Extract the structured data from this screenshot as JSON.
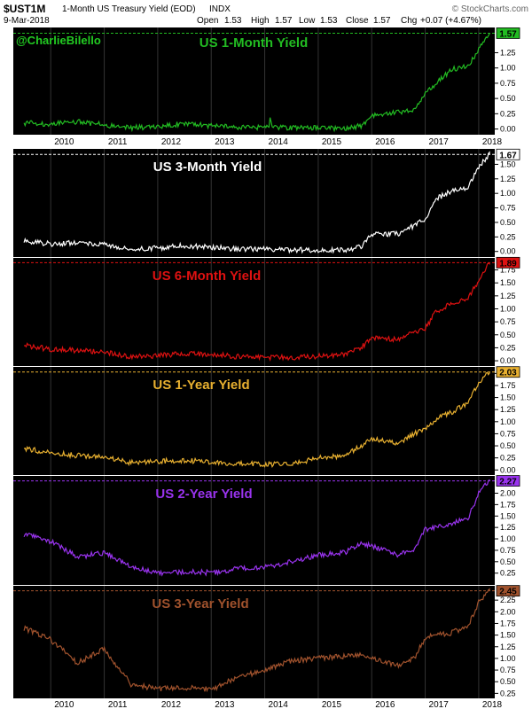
{
  "header": {
    "symbol": "$UST1M",
    "description": "1-Month US Treasury Yield (EOD)",
    "exchange": "INDX",
    "date": "9-Mar-2018",
    "source": "© StockCharts.com",
    "open_label": "Open",
    "open": "1.53",
    "high_label": "High",
    "high": "1.57",
    "low_label": "Low",
    "low": "1.53",
    "close_label": "Close",
    "close": "1.57",
    "chg_label": "Chg",
    "chg": "+0.07 (+4.67%)"
  },
  "watermark": "@CharlieBilello",
  "x_ticks": [
    "2010",
    "2011",
    "2012",
    "2013",
    "2014",
    "2015",
    "2016",
    "2017",
    "2018"
  ],
  "chart_data": [
    {
      "type": "line",
      "title": "US 1-Month Yield",
      "color": "#22bb22",
      "last_value": "1.57",
      "ylim": [
        -0.05,
        1.62
      ],
      "y_ticks": [
        "0.00",
        "0.25",
        "0.50",
        "0.75",
        "1.00",
        "1.25"
      ],
      "x": [
        2009.5,
        2010,
        2010.5,
        2011,
        2011.5,
        2012,
        2012.5,
        2013,
        2013.5,
        2014,
        2014.5,
        2015,
        2015.5,
        2015.8,
        2016,
        2016.5,
        2016.8,
        2017,
        2017.2,
        2017.5,
        2017.8,
        2018,
        2018.2
      ],
      "values": [
        0.1,
        0.08,
        0.12,
        0.07,
        0.02,
        0.04,
        0.09,
        0.05,
        0.03,
        0.03,
        0.02,
        0.02,
        0.01,
        0.05,
        0.22,
        0.27,
        0.33,
        0.58,
        0.75,
        0.98,
        1.02,
        1.3,
        1.57
      ]
    },
    {
      "type": "line",
      "title": "US 3-Month Yield",
      "color": "#ffffff",
      "last_value": "1.67",
      "ylim": [
        -0.05,
        1.72
      ],
      "y_ticks": [
        "0.00",
        "0.25",
        "0.50",
        "0.75",
        "1.00",
        "1.25",
        "1.50"
      ],
      "x": [
        2009.5,
        2010,
        2010.5,
        2011,
        2011.5,
        2012,
        2012.5,
        2013,
        2013.5,
        2014,
        2014.5,
        2015,
        2015.5,
        2015.8,
        2016,
        2016.5,
        2016.8,
        2017,
        2017.2,
        2017.5,
        2017.8,
        2018,
        2018.2
      ],
      "values": [
        0.18,
        0.13,
        0.15,
        0.12,
        0.03,
        0.06,
        0.1,
        0.07,
        0.04,
        0.04,
        0.03,
        0.02,
        0.02,
        0.08,
        0.3,
        0.3,
        0.45,
        0.55,
        0.9,
        1.05,
        1.1,
        1.45,
        1.67
      ]
    },
    {
      "type": "line",
      "title": "US 6-Month Yield",
      "color": "#dd1111",
      "last_value": "1.89",
      "ylim": [
        -0.05,
        1.93
      ],
      "y_ticks": [
        "0.00",
        "0.25",
        "0.50",
        "0.75",
        "1.00",
        "1.25",
        "1.50",
        "1.75"
      ],
      "x": [
        2009.5,
        2010,
        2010.5,
        2011,
        2011.5,
        2012,
        2012.5,
        2013,
        2013.5,
        2014,
        2014.5,
        2015,
        2015.5,
        2015.8,
        2016,
        2016.5,
        2016.8,
        2017,
        2017.2,
        2017.5,
        2017.8,
        2018,
        2018.2
      ],
      "values": [
        0.3,
        0.22,
        0.2,
        0.17,
        0.07,
        0.1,
        0.14,
        0.12,
        0.08,
        0.07,
        0.06,
        0.09,
        0.12,
        0.25,
        0.45,
        0.4,
        0.55,
        0.62,
        0.95,
        1.1,
        1.2,
        1.55,
        1.89
      ]
    },
    {
      "type": "line",
      "title": "US 1-Year Yield",
      "color": "#e8b030",
      "last_value": "2.03",
      "ylim": [
        -0.05,
        2.08
      ],
      "y_ticks": [
        "0.00",
        "0.25",
        "0.50",
        "0.75",
        "1.00",
        "1.25",
        "1.50",
        "1.75",
        "2.00"
      ],
      "x": [
        2009.5,
        2010,
        2010.5,
        2011,
        2011.5,
        2012,
        2012.5,
        2013,
        2013.5,
        2014,
        2014.5,
        2015,
        2015.5,
        2015.8,
        2016,
        2016.5,
        2016.8,
        2017,
        2017.2,
        2017.5,
        2017.8,
        2018,
        2018.2
      ],
      "values": [
        0.45,
        0.35,
        0.3,
        0.27,
        0.15,
        0.18,
        0.2,
        0.16,
        0.13,
        0.12,
        0.11,
        0.25,
        0.3,
        0.5,
        0.65,
        0.55,
        0.75,
        0.85,
        1.05,
        1.2,
        1.4,
        1.8,
        2.03
      ]
    },
    {
      "type": "line",
      "title": "US 2-Year Yield",
      "color": "#9933ee",
      "last_value": "2.27",
      "ylim": [
        0.05,
        2.32
      ],
      "y_ticks": [
        "0.25",
        "0.50",
        "0.75",
        "1.00",
        "1.25",
        "1.50",
        "1.75",
        "2.00"
      ],
      "x": [
        2009.5,
        2010,
        2010.5,
        2011,
        2011.5,
        2012,
        2012.5,
        2013,
        2013.5,
        2014,
        2014.5,
        2015,
        2015.5,
        2015.8,
        2016,
        2016.5,
        2016.8,
        2017,
        2017.2,
        2017.5,
        2017.8,
        2018,
        2018.2
      ],
      "values": [
        1.1,
        0.95,
        0.6,
        0.7,
        0.4,
        0.25,
        0.28,
        0.26,
        0.35,
        0.38,
        0.5,
        0.65,
        0.7,
        0.9,
        0.85,
        0.65,
        0.75,
        1.2,
        1.25,
        1.35,
        1.45,
        2.0,
        2.27
      ]
    },
    {
      "type": "line",
      "title": "US 3-Year Yield",
      "color": "#a0522d",
      "last_value": "2.45",
      "ylim": [
        0.2,
        2.5
      ],
      "y_ticks": [
        "0.25",
        "0.50",
        "0.75",
        "1.00",
        "1.25",
        "1.50",
        "1.75",
        "2.00",
        "2.25"
      ],
      "x": [
        2009.5,
        2010,
        2010.5,
        2011,
        2011.5,
        2012,
        2012.5,
        2013,
        2013.5,
        2014,
        2014.5,
        2015,
        2015.5,
        2015.8,
        2016,
        2016.5,
        2016.8,
        2017,
        2017.2,
        2017.5,
        2017.8,
        2018,
        2018.2
      ],
      "values": [
        1.65,
        1.4,
        0.9,
        1.2,
        0.45,
        0.35,
        0.38,
        0.33,
        0.6,
        0.75,
        0.95,
        1.0,
        1.05,
        1.1,
        1.0,
        0.85,
        1.0,
        1.45,
        1.5,
        1.55,
        1.7,
        2.2,
        2.45
      ]
    }
  ]
}
